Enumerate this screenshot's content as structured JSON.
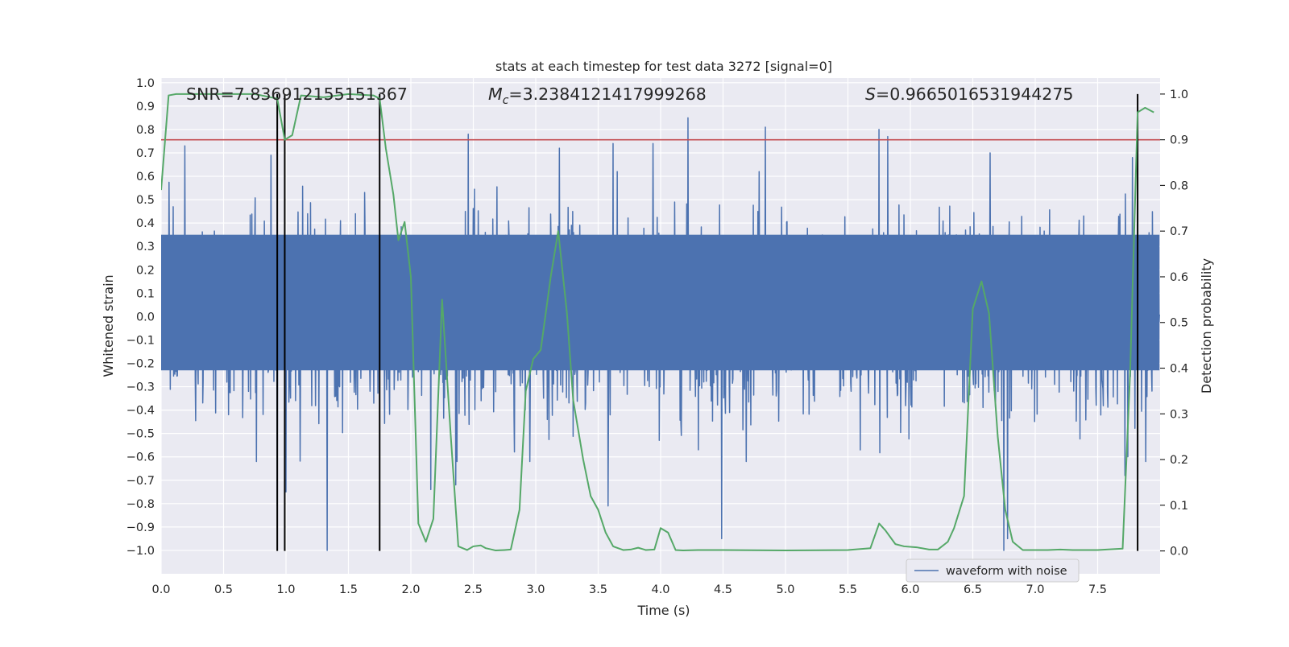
{
  "chart_data": {
    "type": "line",
    "title": "stats at each timestep for test data 3272 [signal=0]",
    "xlabel": "Time (s)",
    "ylabel": "Whitened strain",
    "ylabel_right": "Detection probability",
    "xlim": [
      0.0,
      8.0
    ],
    "ylim": [
      -1.1,
      1.02
    ],
    "ylim_right": [
      -0.05,
      1.035
    ],
    "xticks": [
      "0.0",
      "0.5",
      "1.0",
      "1.5",
      "2.0",
      "2.5",
      "3.0",
      "3.5",
      "4.0",
      "4.5",
      "5.0",
      "5.5",
      "6.0",
      "6.5",
      "7.0",
      "7.5"
    ],
    "xtick_values": [
      0.0,
      0.5,
      1.0,
      1.5,
      2.0,
      2.5,
      3.0,
      3.5,
      4.0,
      4.5,
      5.0,
      5.5,
      6.0,
      6.5,
      7.0,
      7.5
    ],
    "yticks": [
      "1.0",
      "0.9",
      "0.8",
      "0.7",
      "0.6",
      "0.5",
      "0.4",
      "0.3",
      "0.2",
      "0.1",
      "0.0",
      "−0.1",
      "−0.2",
      "−0.3",
      "−0.4",
      "−0.5",
      "−0.6",
      "−0.7",
      "−0.8",
      "−0.9",
      "−1.0"
    ],
    "ytick_values": [
      1.0,
      0.9,
      0.8,
      0.7,
      0.6,
      0.5,
      0.4,
      0.3,
      0.2,
      0.1,
      0.0,
      -0.1,
      -0.2,
      -0.3,
      -0.4,
      -0.5,
      -0.6,
      -0.7,
      -0.8,
      -0.9,
      -1.0
    ],
    "yticks_right": [
      "1.0",
      "0.9",
      "0.8",
      "0.7",
      "0.6",
      "0.5",
      "0.4",
      "0.3",
      "0.2",
      "0.1",
      "0.0"
    ],
    "ytick_right_values": [
      1.0,
      0.9,
      0.8,
      0.7,
      0.6,
      0.5,
      0.4,
      0.3,
      0.2,
      0.1,
      0.0
    ],
    "annotations": {
      "snr": "SNR=7.836912155151367",
      "mc_symbol": "M",
      "mc_sub": "c",
      "mc_value": "=3.2384121417999268",
      "s_symbol": "S",
      "s_value": "=0.9665016531944275"
    },
    "legend": {
      "label": "waveform with noise",
      "position": "lower-right"
    },
    "threshold_probability": 0.9,
    "vertical_lines_time": [
      0.93,
      0.99,
      1.75,
      7.82
    ],
    "waveform": {
      "name": "waveform with noise",
      "color": "#4c72b0",
      "core_band": [
        -0.23,
        0.35
      ],
      "typical_band": [
        -0.45,
        0.55
      ],
      "peaks": [
        {
          "t": 0.19,
          "v": 0.73
        },
        {
          "t": 0.88,
          "v": 0.69
        },
        {
          "t": 2.46,
          "v": 0.78
        },
        {
          "t": 3.19,
          "v": 0.72
        },
        {
          "t": 3.62,
          "v": 0.74
        },
        {
          "t": 3.94,
          "v": 0.74
        },
        {
          "t": 4.22,
          "v": 0.85
        },
        {
          "t": 4.84,
          "v": 0.81
        },
        {
          "t": 5.75,
          "v": 0.8
        },
        {
          "t": 5.82,
          "v": 0.77
        },
        {
          "t": 6.64,
          "v": 0.7
        },
        {
          "t": 7.78,
          "v": 0.68
        }
      ],
      "troughs": [
        {
          "t": 0.93,
          "v": -0.81
        },
        {
          "t": 1.0,
          "v": -0.75
        },
        {
          "t": 1.33,
          "v": -1.0
        },
        {
          "t": 2.16,
          "v": -0.74
        },
        {
          "t": 2.36,
          "v": -0.72
        },
        {
          "t": 3.58,
          "v": -0.81
        },
        {
          "t": 4.49,
          "v": -0.95
        },
        {
          "t": 6.75,
          "v": -1.0
        },
        {
          "t": 6.78,
          "v": -0.95
        },
        {
          "t": 7.72,
          "v": -0.68
        }
      ]
    },
    "detection_probability": {
      "name": "Detection probability",
      "color": "#55a868",
      "t": [
        0.0,
        0.06,
        0.12,
        0.25,
        0.5,
        0.75,
        0.93,
        0.99,
        1.05,
        1.12,
        1.3,
        1.5,
        1.7,
        1.75,
        1.8,
        1.86,
        1.9,
        1.95,
        2.0,
        2.06,
        2.12,
        2.18,
        2.25,
        2.32,
        2.38,
        2.45,
        2.5,
        2.56,
        2.6,
        2.68,
        2.75,
        2.8,
        2.87,
        2.92,
        2.98,
        3.04,
        3.12,
        3.18,
        3.25,
        3.3,
        3.38,
        3.44,
        3.5,
        3.56,
        3.62,
        3.7,
        3.76,
        3.82,
        3.88,
        3.95,
        4.0,
        4.06,
        4.12,
        4.18,
        4.3,
        4.5,
        5.0,
        5.5,
        5.68,
        5.75,
        5.8,
        5.88,
        5.95,
        6.05,
        6.15,
        6.22,
        6.3,
        6.35,
        6.43,
        6.5,
        6.57,
        6.63,
        6.7,
        6.76,
        6.82,
        6.9,
        7.1,
        7.2,
        7.3,
        7.5,
        7.7,
        7.76,
        7.82,
        7.88,
        7.95
      ],
      "p": [
        0.79,
        0.997,
        1.0,
        1.0,
        1.0,
        1.0,
        0.99,
        0.9,
        0.91,
        0.997,
        0.993,
        1.0,
        0.997,
        0.99,
        0.88,
        0.78,
        0.68,
        0.72,
        0.6,
        0.06,
        0.02,
        0.07,
        0.55,
        0.25,
        0.01,
        0.002,
        0.01,
        0.012,
        0.006,
        0.001,
        0.002,
        0.003,
        0.09,
        0.35,
        0.42,
        0.44,
        0.6,
        0.7,
        0.52,
        0.33,
        0.2,
        0.12,
        0.09,
        0.04,
        0.01,
        0.002,
        0.003,
        0.007,
        0.002,
        0.003,
        0.05,
        0.04,
        0.002,
        0.001,
        0.002,
        0.002,
        0.001,
        0.002,
        0.006,
        0.06,
        0.045,
        0.015,
        0.01,
        0.008,
        0.003,
        0.003,
        0.02,
        0.05,
        0.12,
        0.53,
        0.59,
        0.52,
        0.25,
        0.09,
        0.02,
        0.002,
        0.002,
        0.003,
        0.002,
        0.002,
        0.005,
        0.39,
        0.96,
        0.97,
        0.96
      ]
    }
  }
}
